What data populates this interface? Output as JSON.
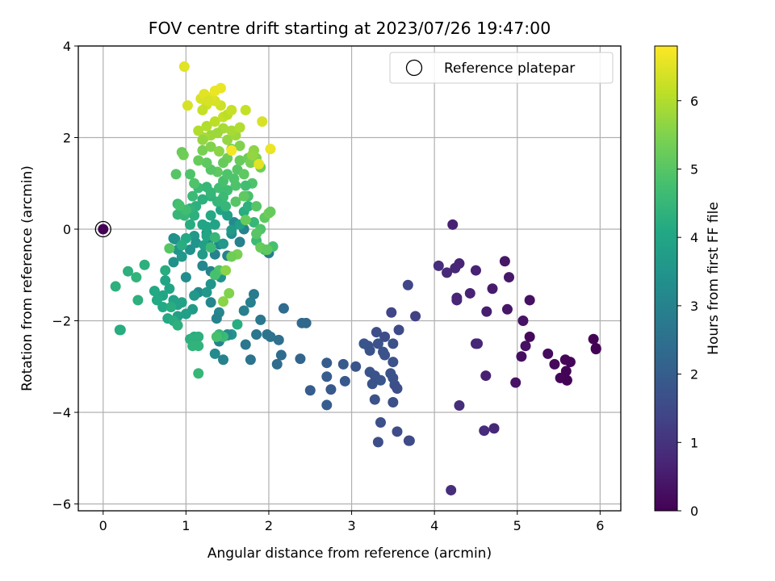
{
  "chart_data": {
    "type": "scatter",
    "title": "FOV centre drift starting at 2023/07/26 19:47:00",
    "xlabel": "Angular distance from reference (arcmin)",
    "ylabel": "Rotation from reference (arcmin)",
    "xlim": [
      -0.3,
      6.25
    ],
    "ylim": [
      -6.15,
      4.0
    ],
    "xticks": [
      0,
      1,
      2,
      3,
      4,
      5,
      6
    ],
    "xtick_labels": [
      "0",
      "1",
      "2",
      "3",
      "4",
      "5",
      "6"
    ],
    "yticks": [
      -6,
      -4,
      -2,
      0,
      2,
      4
    ],
    "ytick_labels": [
      "−6",
      "−4",
      "−2",
      "0",
      "2",
      "4"
    ],
    "grid": true,
    "colormap": "viridis",
    "colorbar": {
      "label": "Hours from first FF file",
      "range": [
        0,
        6.8
      ],
      "ticks": [
        0,
        1,
        2,
        3,
        4,
        5,
        6
      ],
      "tick_labels": [
        "0",
        "1",
        "2",
        "3",
        "4",
        "5",
        "6"
      ]
    },
    "legend": {
      "position": "top-right",
      "entries": [
        "Reference platepar"
      ]
    },
    "reference_point": {
      "x": 0,
      "y": 0
    },
    "points": [
      [
        4.22,
        0.1,
        0.6
      ],
      [
        4.3,
        -0.75,
        0.7
      ],
      [
        4.05,
        -0.8,
        0.9
      ],
      [
        4.15,
        -0.95,
        0.8
      ],
      [
        4.25,
        -0.85,
        0.75
      ],
      [
        4.5,
        -0.9,
        0.65
      ],
      [
        4.85,
        -0.7,
        0.4
      ],
      [
        4.9,
        -1.05,
        0.45
      ],
      [
        4.7,
        -1.3,
        0.5
      ],
      [
        5.15,
        -1.55,
        0.3
      ],
      [
        4.88,
        -1.75,
        0.4
      ],
      [
        4.63,
        -1.8,
        0.55
      ],
      [
        4.43,
        -1.4,
        0.65
      ],
      [
        4.27,
        -1.5,
        0.7
      ],
      [
        4.27,
        -1.55,
        0.7
      ],
      [
        5.07,
        -2.0,
        0.35
      ],
      [
        5.15,
        -2.35,
        0.15
      ],
      [
        5.1,
        -2.55,
        0.3
      ],
      [
        5.05,
        -2.78,
        0.25
      ],
      [
        5.37,
        -2.72,
        0.2
      ],
      [
        5.45,
        -2.95,
        0.15
      ],
      [
        5.52,
        -3.25,
        0.1
      ],
      [
        5.6,
        -3.3,
        0.05
      ],
      [
        5.6,
        -3.3,
        0.05
      ],
      [
        5.58,
        -2.85,
        0.1
      ],
      [
        5.64,
        -2.9,
        0.1
      ],
      [
        5.59,
        -3.1,
        0.05
      ],
      [
        5.92,
        -2.4,
        0.03
      ],
      [
        5.95,
        -2.6,
        0.02
      ],
      [
        5.95,
        -2.62,
        0.02
      ],
      [
        4.98,
        -3.35,
        0.35
      ],
      [
        4.62,
        -3.2,
        0.6
      ],
      [
        4.5,
        -2.5,
        0.75
      ],
      [
        4.52,
        -2.5,
        0.75
      ],
      [
        4.3,
        -3.85,
        0.9
      ],
      [
        4.6,
        -4.4,
        0.85
      ],
      [
        4.72,
        -4.35,
        0.75
      ],
      [
        4.2,
        -5.7,
        0.9
      ],
      [
        3.68,
        -1.22,
        1.4
      ],
      [
        3.77,
        -1.9,
        1.3
      ],
      [
        3.48,
        -1.82,
        1.4
      ],
      [
        3.57,
        -2.2,
        1.5
      ],
      [
        3.3,
        -2.25,
        1.6
      ],
      [
        3.4,
        -2.35,
        1.6
      ],
      [
        3.32,
        -2.5,
        1.7
      ],
      [
        3.2,
        -2.55,
        1.7
      ],
      [
        3.15,
        -2.5,
        1.8
      ],
      [
        3.22,
        -2.65,
        1.75
      ],
      [
        3.4,
        -2.75,
        1.7
      ],
      [
        3.5,
        -2.5,
        1.65
      ],
      [
        3.5,
        -2.9,
        1.7
      ],
      [
        3.38,
        -2.68,
        1.7
      ],
      [
        3.05,
        -3.0,
        1.8
      ],
      [
        3.22,
        -3.12,
        1.8
      ],
      [
        3.28,
        -3.2,
        1.75
      ],
      [
        3.35,
        -3.3,
        1.8
      ],
      [
        3.25,
        -3.38,
        1.75
      ],
      [
        3.47,
        -3.15,
        1.7
      ],
      [
        3.5,
        -3.25,
        1.7
      ],
      [
        3.52,
        -3.4,
        1.65
      ],
      [
        3.55,
        -3.48,
        1.6
      ],
      [
        3.28,
        -3.72,
        1.7
      ],
      [
        3.5,
        -3.78,
        1.65
      ],
      [
        3.35,
        -4.22,
        1.65
      ],
      [
        3.32,
        -4.65,
        1.6
      ],
      [
        3.55,
        -4.42,
        1.55
      ],
      [
        3.7,
        -4.62,
        1.5
      ],
      [
        3.69,
        -4.62,
        1.5
      ],
      [
        2.9,
        -2.95,
        1.9
      ],
      [
        2.7,
        -2.92,
        2.0
      ],
      [
        2.7,
        -3.22,
        2.0
      ],
      [
        2.92,
        -3.32,
        1.9
      ],
      [
        2.75,
        -3.5,
        1.9
      ],
      [
        2.5,
        -3.52,
        2.0
      ],
      [
        2.7,
        -3.84,
        2.0
      ],
      [
        2.4,
        -2.05,
        2.3
      ],
      [
        2.45,
        -2.05,
        2.3
      ],
      [
        2.18,
        -1.73,
        2.4
      ],
      [
        2.38,
        -2.83,
        2.2
      ],
      [
        2.15,
        -2.75,
        2.4
      ],
      [
        2.12,
        -2.42,
        2.5
      ],
      [
        2.1,
        -2.95,
        2.4
      ],
      [
        2.0,
        -0.52,
        2.8
      ],
      [
        2.02,
        -2.35,
        2.6
      ],
      [
        1.98,
        -2.3,
        2.6
      ],
      [
        1.78,
        -1.6,
        2.9
      ],
      [
        1.82,
        -1.42,
        2.8
      ],
      [
        1.9,
        -1.98,
        2.7
      ],
      [
        1.85,
        -2.3,
        2.7
      ],
      [
        1.7,
        -1.78,
        2.9
      ],
      [
        1.78,
        -2.85,
        2.6
      ],
      [
        1.72,
        -2.52,
        2.7
      ],
      [
        1.62,
        -2.08,
        4.2
      ],
      [
        1.55,
        -2.3,
        3.5
      ],
      [
        1.5,
        -2.32,
        3.4
      ],
      [
        1.4,
        -1.82,
        3.1
      ],
      [
        1.37,
        -1.95,
        3.0
      ],
      [
        1.4,
        -2.45,
        3.0
      ],
      [
        1.35,
        -2.72,
        3.2
      ],
      [
        1.45,
        -2.85,
        3.0
      ],
      [
        1.5,
        -2.3,
        3.2
      ],
      [
        1.3,
        -1.6,
        3.1
      ],
      [
        1.3,
        -0.92,
        3.0
      ],
      [
        1.2,
        -0.8,
        3.1
      ],
      [
        1.15,
        -1.38,
        3.2
      ],
      [
        1.0,
        -1.05,
        3.3
      ],
      [
        1.35,
        -0.55,
        3.0
      ],
      [
        1.4,
        -0.33,
        3.1
      ],
      [
        1.5,
        -0.58,
        3.0
      ],
      [
        1.65,
        -0.28,
        3.0
      ],
      [
        1.7,
        0.0,
        3.0
      ],
      [
        1.58,
        0.15,
        3.2
      ],
      [
        1.55,
        -0.1,
        3.3
      ],
      [
        1.45,
        -0.32,
        3.6
      ],
      [
        1.28,
        -0.22,
        3.1
      ],
      [
        1.25,
        -0.08,
        3.5
      ],
      [
        1.1,
        -0.15,
        3.6
      ],
      [
        1.05,
        -0.45,
        3.4
      ],
      [
        0.9,
        -0.45,
        3.5
      ],
      [
        0.85,
        -0.72,
        3.4
      ],
      [
        0.85,
        -0.2,
        3.3
      ],
      [
        0.87,
        -0.22,
        3.4
      ],
      [
        0.95,
        -0.6,
        3.6
      ],
      [
        1.12,
        -0.3,
        3.5
      ],
      [
        1.2,
        -0.55,
        3.7
      ],
      [
        1.22,
        -0.35,
        3.8
      ],
      [
        1.3,
        -1.2,
        3.5
      ],
      [
        1.42,
        -1.05,
        3.5
      ],
      [
        1.25,
        -1.38,
        3.6
      ],
      [
        1.1,
        -1.45,
        3.6
      ],
      [
        1.08,
        -1.75,
        3.7
      ],
      [
        1.0,
        -1.85,
        3.8
      ],
      [
        0.9,
        -1.9,
        3.8
      ],
      [
        0.85,
        -1.55,
        3.9
      ],
      [
        0.9,
        -1.65,
        3.9
      ],
      [
        0.95,
        -1.6,
        3.9
      ],
      [
        0.75,
        -1.12,
        4.0
      ],
      [
        0.8,
        -1.3,
        4.0
      ],
      [
        0.72,
        -1.45,
        4.0
      ],
      [
        0.62,
        -1.35,
        4.1
      ],
      [
        0.65,
        -1.55,
        4.1
      ],
      [
        0.72,
        -1.7,
        4.1
      ],
      [
        0.78,
        -1.95,
        4.1
      ],
      [
        0.82,
        -1.7,
        4.2
      ],
      [
        0.85,
        -2.0,
        4.2
      ],
      [
        0.9,
        -2.1,
        4.3
      ],
      [
        0.75,
        -0.9,
        4.2
      ],
      [
        0.5,
        -0.78,
        4.3
      ],
      [
        0.3,
        -0.92,
        4.3
      ],
      [
        0.4,
        -1.05,
        4.4
      ],
      [
        0.15,
        -1.25,
        4.3
      ],
      [
        0.42,
        -1.55,
        4.3
      ],
      [
        0.2,
        -2.2,
        4.2
      ],
      [
        0.21,
        -2.2,
        4.2
      ],
      [
        1.1,
        -2.35,
        4.2
      ],
      [
        1.05,
        -2.4,
        4.3
      ],
      [
        1.15,
        -2.35,
        4.3
      ],
      [
        1.08,
        -2.55,
        4.4
      ],
      [
        1.15,
        -2.55,
        4.4
      ],
      [
        1.15,
        -3.15,
        4.5
      ],
      [
        1.45,
        -2.35,
        4.6
      ],
      [
        1.4,
        -2.3,
        4.5
      ],
      [
        1.37,
        -2.35,
        4.8
      ],
      [
        1.0,
        -0.2,
        4.1
      ],
      [
        0.95,
        -0.35,
        4.2
      ],
      [
        1.05,
        0.1,
        4.2
      ],
      [
        1.1,
        0.3,
        4.3
      ],
      [
        1.2,
        0.1,
        4.0
      ],
      [
        1.25,
        -0.15,
        4.0
      ],
      [
        1.3,
        0.3,
        4.1
      ],
      [
        1.35,
        0.1,
        3.9
      ],
      [
        1.42,
        0.42,
        4.0
      ],
      [
        1.5,
        0.3,
        3.8
      ],
      [
        1.55,
        -0.02,
        3.7
      ],
      [
        1.65,
        0.1,
        3.8
      ],
      [
        1.7,
        0.38,
        4.2
      ],
      [
        1.75,
        0.5,
        4.3
      ],
      [
        1.82,
        0.15,
        4.5
      ],
      [
        1.85,
        -0.25,
        4.6
      ],
      [
        1.95,
        -0.45,
        4.7
      ],
      [
        2.05,
        -0.38,
        4.8
      ],
      [
        1.9,
        0.0,
        4.9
      ],
      [
        1.95,
        0.25,
        5.1
      ],
      [
        2.0,
        0.35,
        5.3
      ],
      [
        1.85,
        0.5,
        5.0
      ],
      [
        1.75,
        0.72,
        4.8
      ],
      [
        1.8,
        1.0,
        4.9
      ],
      [
        1.72,
        0.95,
        4.7
      ],
      [
        1.6,
        0.95,
        4.9
      ],
      [
        1.58,
        1.1,
        4.9
      ],
      [
        1.5,
        0.85,
        4.7
      ],
      [
        1.45,
        0.7,
        4.6
      ],
      [
        1.38,
        0.6,
        4.5
      ],
      [
        1.3,
        0.72,
        4.4
      ],
      [
        1.2,
        0.65,
        4.3
      ],
      [
        1.12,
        0.5,
        4.3
      ],
      [
        1.05,
        0.45,
        4.4
      ],
      [
        0.98,
        0.3,
        4.5
      ],
      [
        0.9,
        0.55,
        4.6
      ],
      [
        0.9,
        0.32,
        4.5
      ],
      [
        1.0,
        0.42,
        4.7
      ],
      [
        1.08,
        0.72,
        4.6
      ],
      [
        1.15,
        0.9,
        4.6
      ],
      [
        1.25,
        0.92,
        4.5
      ],
      [
        1.3,
        0.8,
        4.5
      ],
      [
        1.4,
        0.9,
        4.7
      ],
      [
        1.45,
        1.05,
        4.8
      ],
      [
        1.5,
        1.2,
        4.9
      ],
      [
        1.62,
        1.3,
        5.0
      ],
      [
        1.7,
        1.2,
        5.1
      ],
      [
        1.65,
        1.5,
        5.2
      ],
      [
        1.75,
        1.55,
        5.3
      ],
      [
        1.78,
        1.45,
        5.4
      ],
      [
        1.9,
        1.35,
        5.3
      ],
      [
        1.85,
        1.55,
        5.5
      ],
      [
        1.82,
        1.72,
        5.6
      ],
      [
        1.65,
        1.82,
        5.5
      ],
      [
        1.55,
        1.75,
        5.4
      ],
      [
        1.5,
        1.55,
        5.3
      ],
      [
        1.45,
        1.45,
        5.2
      ],
      [
        1.38,
        1.25,
        5.1
      ],
      [
        1.3,
        1.3,
        5.0
      ],
      [
        1.25,
        1.45,
        5.1
      ],
      [
        1.15,
        1.5,
        5.2
      ],
      [
        1.1,
        1.0,
        4.9
      ],
      [
        1.05,
        1.2,
        4.9
      ],
      [
        0.95,
        1.68,
        5.2
      ],
      [
        0.97,
        1.62,
        5.3
      ],
      [
        0.88,
        1.2,
        5.0
      ],
      [
        1.2,
        1.72,
        5.4
      ],
      [
        1.3,
        1.8,
        5.5
      ],
      [
        1.4,
        1.7,
        5.6
      ],
      [
        1.5,
        1.95,
        5.7
      ],
      [
        1.6,
        2.05,
        5.8
      ],
      [
        1.55,
        2.15,
        5.9
      ],
      [
        1.45,
        2.2,
        5.9
      ],
      [
        1.38,
        2.1,
        5.8
      ],
      [
        1.3,
        2.05,
        5.8
      ],
      [
        1.22,
        2.0,
        5.9
      ],
      [
        1.25,
        2.25,
        6.0
      ],
      [
        1.35,
        2.35,
        6.1
      ],
      [
        1.45,
        2.45,
        6.2
      ],
      [
        1.5,
        2.5,
        6.1
      ],
      [
        1.55,
        2.6,
        6.2
      ],
      [
        1.42,
        2.7,
        6.3
      ],
      [
        1.35,
        2.8,
        6.4
      ],
      [
        1.3,
        2.88,
        6.5
      ],
      [
        1.25,
        2.72,
        6.3
      ],
      [
        1.18,
        2.85,
        6.4
      ],
      [
        1.22,
        2.95,
        6.5
      ],
      [
        1.35,
        3.02,
        6.6
      ],
      [
        1.42,
        3.08,
        6.6
      ],
      [
        1.27,
        2.8,
        6.4
      ],
      [
        1.2,
        2.6,
        6.2
      ],
      [
        1.15,
        2.15,
        6.0
      ],
      [
        1.2,
        1.95,
        5.7
      ],
      [
        1.65,
        2.22,
        6.0
      ],
      [
        1.72,
        2.6,
        6.2
      ],
      [
        1.92,
        2.35,
        6.4
      ],
      [
        1.8,
        1.62,
        5.7
      ],
      [
        1.55,
        1.72,
        6.7
      ],
      [
        2.02,
        1.75,
        6.6
      ],
      [
        1.88,
        1.42,
        6.5
      ],
      [
        1.02,
        2.7,
        6.4
      ],
      [
        0.98,
        3.55,
        6.5
      ],
      [
        1.6,
        0.6,
        5.0
      ],
      [
        1.7,
        0.72,
        5.1
      ],
      [
        1.72,
        0.2,
        5.2
      ],
      [
        1.62,
        -0.55,
        5.4
      ],
      [
        1.55,
        -0.6,
        5.3
      ],
      [
        1.52,
        -1.4,
        5.5
      ],
      [
        1.45,
        -1.58,
        5.6
      ],
      [
        1.4,
        -0.9,
        4.9
      ],
      [
        1.35,
        -1.0,
        4.8
      ],
      [
        0.8,
        -0.42,
        5.0
      ],
      [
        1.9,
        -0.4,
        5.2
      ],
      [
        1.98,
        -0.45,
        5.1
      ],
      [
        1.85,
        -0.1,
        5.0
      ],
      [
        2.02,
        0.38,
        5.2
      ],
      [
        1.48,
        -0.9,
        5.6
      ],
      [
        1.3,
        -0.4,
        4.6
      ],
      [
        1.35,
        -0.18,
        4.5
      ],
      [
        1.48,
        0.5,
        4.5
      ],
      [
        0.92,
        0.52,
        4.8
      ],
      [
        1.25,
        0.05,
        4.0
      ]
    ]
  }
}
